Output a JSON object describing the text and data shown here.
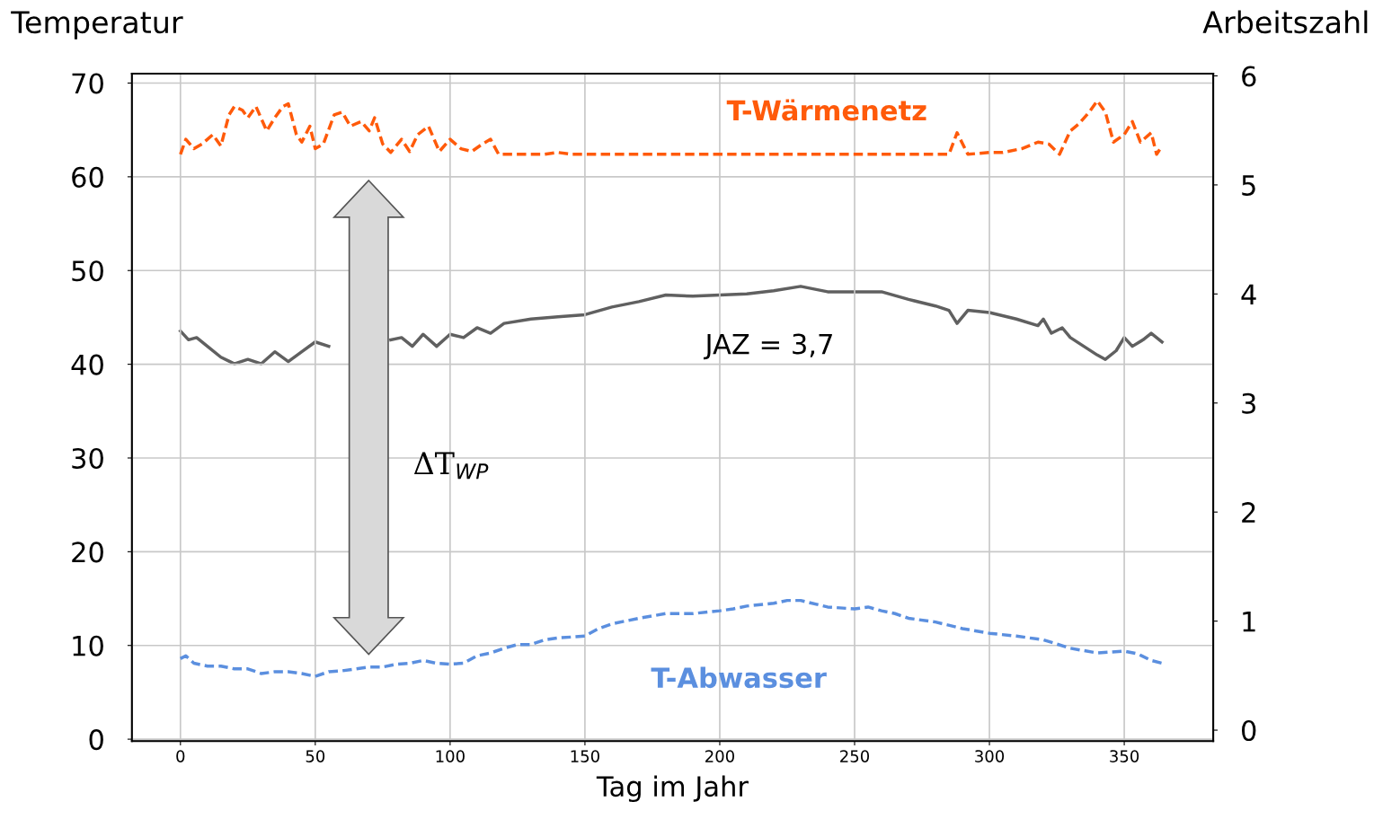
{
  "chart_data": {
    "type": "line",
    "xlabel": "Tag im Jahr",
    "ylabel": "Temperatur",
    "y2label": "Arbeitszahl",
    "xlim": [
      -18,
      383
    ],
    "xticks": [
      0,
      50,
      100,
      150,
      200,
      250,
      300,
      350
    ],
    "ylim": [
      -0.2,
      71
    ],
    "yticks": [
      0,
      10,
      20,
      30,
      40,
      50,
      60,
      70
    ],
    "y2lim": [
      -0.1,
      6.02
    ],
    "y2ticks": [
      0,
      1,
      2,
      3,
      4,
      5,
      6
    ],
    "grid": true,
    "marker": "none",
    "annotations": [
      "JAZ = 3,7",
      "ΔT$_{WP}$"
    ],
    "series": [
      {
        "name": "T-Wärmenetz",
        "color": "#ff5a0a",
        "line_style": "dashed",
        "x": [
          0,
          2,
          5,
          8,
          12,
          15,
          18,
          20,
          23,
          25,
          28,
          32,
          35,
          38,
          40,
          43,
          45,
          48,
          50,
          53,
          57,
          60,
          63,
          67,
          70,
          72,
          75,
          78,
          82,
          85,
          88,
          92,
          96,
          100,
          104,
          108,
          112,
          115,
          118,
          125,
          135,
          140,
          145,
          200,
          285,
          288,
          292,
          300,
          305,
          312,
          318,
          322,
          326,
          330,
          333,
          337,
          340,
          343,
          346,
          350,
          353,
          356,
          360,
          362,
          364
        ],
        "values": [
          62.4,
          64.0,
          63.0,
          63.5,
          64.5,
          63.3,
          66.6,
          67.5,
          67.1,
          66.3,
          67.5,
          64.9,
          66.3,
          67.5,
          67.8,
          64.5,
          63.7,
          65.4,
          63.0,
          63.5,
          66.6,
          66.9,
          65.4,
          65.9,
          64.9,
          66.3,
          63.5,
          62.6,
          64.0,
          62.7,
          64.5,
          65.4,
          62.7,
          64.0,
          63.0,
          62.7,
          63.5,
          64.0,
          62.4,
          62.4,
          62.4,
          62.6,
          62.4,
          62.4,
          62.4,
          64.7,
          62.4,
          62.6,
          62.6,
          63.0,
          63.7,
          63.5,
          62.4,
          64.9,
          65.6,
          66.9,
          68.1,
          66.9,
          63.7,
          64.5,
          65.9,
          63.7,
          64.7,
          62.4,
          63.3
        ]
      },
      {
        "color": "#606060",
        "line_style": "solid",
        "axis": "y2",
        "x": [
          0,
          3,
          6,
          10,
          15,
          20,
          25,
          30,
          35,
          40,
          45,
          50,
          55,
          70,
          78,
          82,
          86,
          90,
          95,
          100,
          105,
          110,
          115,
          120,
          130,
          140,
          150,
          160,
          170,
          180,
          190,
          200,
          210,
          220,
          230,
          240,
          250,
          260,
          270,
          280,
          285,
          288,
          292,
          300,
          310,
          318,
          320,
          323,
          327,
          330,
          335,
          340,
          343,
          347,
          350,
          353,
          357,
          360,
          364
        ],
        "values": [
          3.66,
          3.58,
          3.6,
          3.52,
          3.42,
          3.36,
          3.4,
          3.36,
          3.47,
          3.38,
          3.47,
          3.56,
          3.52,
          null,
          3.58,
          3.6,
          3.52,
          3.63,
          3.52,
          3.63,
          3.6,
          3.69,
          3.64,
          3.73,
          3.77,
          3.79,
          3.81,
          3.88,
          3.93,
          3.99,
          3.98,
          3.99,
          4.0,
          4.03,
          4.07,
          4.02,
          4.02,
          4.02,
          3.95,
          3.89,
          3.85,
          3.73,
          3.85,
          3.83,
          3.77,
          3.71,
          3.77,
          3.64,
          3.69,
          3.6,
          3.52,
          3.44,
          3.4,
          3.48,
          3.6,
          3.52,
          3.58,
          3.64,
          3.56
        ]
      },
      {
        "name": "T-Abwasser",
        "color": "#5b8fdf",
        "line_style": "dashed",
        "x": [
          0,
          2,
          5,
          10,
          15,
          20,
          25,
          30,
          35,
          40,
          45,
          50,
          55,
          60,
          65,
          70,
          75,
          80,
          85,
          90,
          95,
          100,
          105,
          110,
          115,
          120,
          125,
          130,
          135,
          140,
          150,
          155,
          160,
          170,
          180,
          190,
          200,
          205,
          210,
          220,
          225,
          230,
          240,
          250,
          255,
          260,
          265,
          270,
          280,
          290,
          300,
          310,
          320,
          330,
          340,
          350,
          355,
          360,
          364
        ],
        "values": [
          8.6,
          8.9,
          8.1,
          7.8,
          7.8,
          7.5,
          7.5,
          7.0,
          7.2,
          7.2,
          7.0,
          6.7,
          7.2,
          7.3,
          7.5,
          7.7,
          7.7,
          8.0,
          8.1,
          8.4,
          8.1,
          8.0,
          8.1,
          8.9,
          9.2,
          9.7,
          10.1,
          10.1,
          10.6,
          10.8,
          11.0,
          11.8,
          12.3,
          12.9,
          13.4,
          13.4,
          13.7,
          13.9,
          14.2,
          14.5,
          14.8,
          14.8,
          14.1,
          13.9,
          14.1,
          13.7,
          13.4,
          12.9,
          12.5,
          11.8,
          11.3,
          11.0,
          10.6,
          9.7,
          9.2,
          9.4,
          9.1,
          8.4,
          8.1
        ]
      }
    ]
  }
}
